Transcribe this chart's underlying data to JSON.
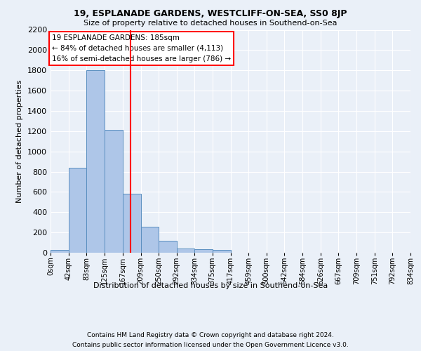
{
  "title1": "19, ESPLANADE GARDENS, WESTCLIFF-ON-SEA, SS0 8JP",
  "title2": "Size of property relative to detached houses in Southend-on-Sea",
  "xlabel": "Distribution of detached houses by size in Southend-on-Sea",
  "ylabel": "Number of detached properties",
  "bar_edges": [
    0,
    42,
    83,
    125,
    167,
    209,
    250,
    292,
    334,
    375,
    417,
    459,
    500,
    542,
    584,
    626,
    667,
    709,
    751,
    792,
    834
  ],
  "bar_heights": [
    30,
    840,
    1800,
    1210,
    580,
    255,
    120,
    45,
    35,
    25,
    0,
    0,
    0,
    0,
    0,
    0,
    0,
    0,
    0,
    0
  ],
  "bar_color": "#aec6e8",
  "bar_edge_color": "#5a8fc0",
  "tick_labels": [
    "0sqm",
    "42sqm",
    "83sqm",
    "125sqm",
    "167sqm",
    "209sqm",
    "250sqm",
    "292sqm",
    "334sqm",
    "375sqm",
    "417sqm",
    "459sqm",
    "500sqm",
    "542sqm",
    "584sqm",
    "626sqm",
    "667sqm",
    "709sqm",
    "751sqm",
    "792sqm",
    "834sqm"
  ],
  "vline_x": 185,
  "vline_color": "red",
  "annotation_text": "19 ESPLANADE GARDENS: 185sqm\n← 84% of detached houses are smaller (4,113)\n16% of semi-detached houses are larger (786) →",
  "annotation_box_color": "white",
  "annotation_box_edge": "red",
  "ylim": [
    0,
    2200
  ],
  "yticks": [
    0,
    200,
    400,
    600,
    800,
    1000,
    1200,
    1400,
    1600,
    1800,
    2000,
    2200
  ],
  "footnote1": "Contains HM Land Registry data © Crown copyright and database right 2024.",
  "footnote2": "Contains public sector information licensed under the Open Government Licence v3.0.",
  "bg_color": "#eaf0f8",
  "grid_color": "white"
}
